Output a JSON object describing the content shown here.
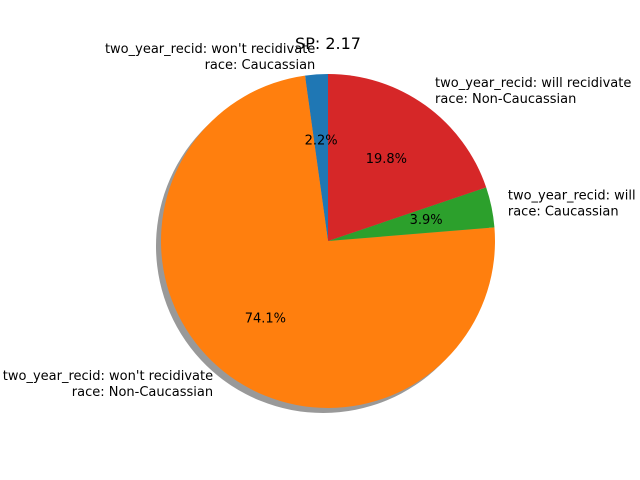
{
  "chart_data": {
    "type": "pie",
    "title": "SP: 2.17",
    "shadow": true,
    "start_angle_deg": 90,
    "direction": "counterclockwise",
    "slices": [
      {
        "label_lines": [
          "two_year_recid: won't recidivate",
          "race: Caucassian"
        ],
        "value": 2.2,
        "pct_label": "2.2%",
        "color": "#1f77b4"
      },
      {
        "label_lines": [
          "two_year_recid: won't recidivate",
          "race: Non-Caucassian"
        ],
        "value": 74.1,
        "pct_label": "74.1%",
        "color": "#ff7f0e"
      },
      {
        "label_lines": [
          "two_year_recid: will recidivate",
          "race: Caucassian"
        ],
        "value": 3.9,
        "pct_label": "3.9%",
        "color": "#2ca02c"
      },
      {
        "label_lines": [
          "two_year_recid: will recidivate",
          "race: Non-Caucassian"
        ],
        "value": 19.8,
        "pct_label": "19.8%",
        "color": "#d62728"
      }
    ]
  }
}
